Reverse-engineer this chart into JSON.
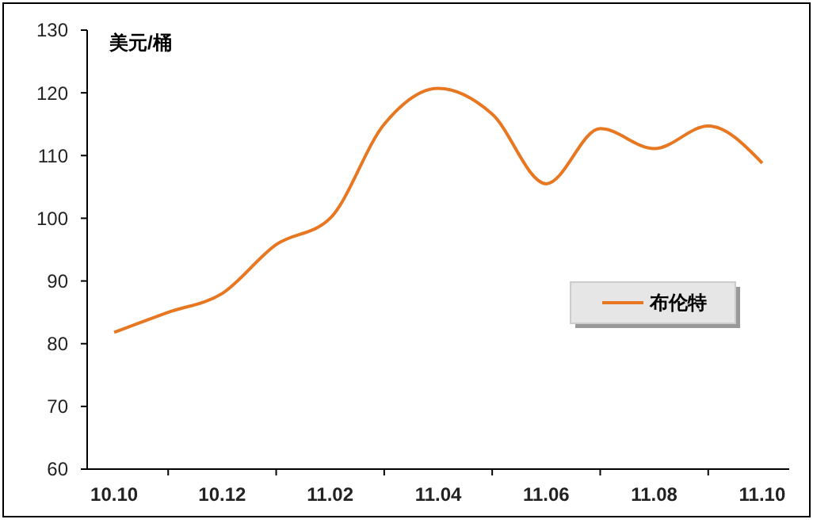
{
  "chart_data": {
    "type": "line",
    "ylabel": "美元/桶",
    "categories": [
      "10.10",
      null,
      "10.12",
      null,
      "11.02",
      null,
      "11.04",
      null,
      "11.06",
      null,
      "11.08",
      null,
      "11.10"
    ],
    "series": [
      {
        "name": "布伦特",
        "color": "#e87722",
        "values": [
          81.8,
          85,
          88,
          95.8,
          100,
          115,
          120.7,
          116.6,
          105.5,
          114.3,
          111.1,
          114.7,
          108.8
        ]
      }
    ],
    "ylim": [
      60,
      130
    ],
    "yticks": [
      60,
      70,
      80,
      90,
      100,
      110,
      120,
      130
    ],
    "grid": false,
    "legend": "right",
    "marker": "none",
    "line_style": "solid"
  }
}
